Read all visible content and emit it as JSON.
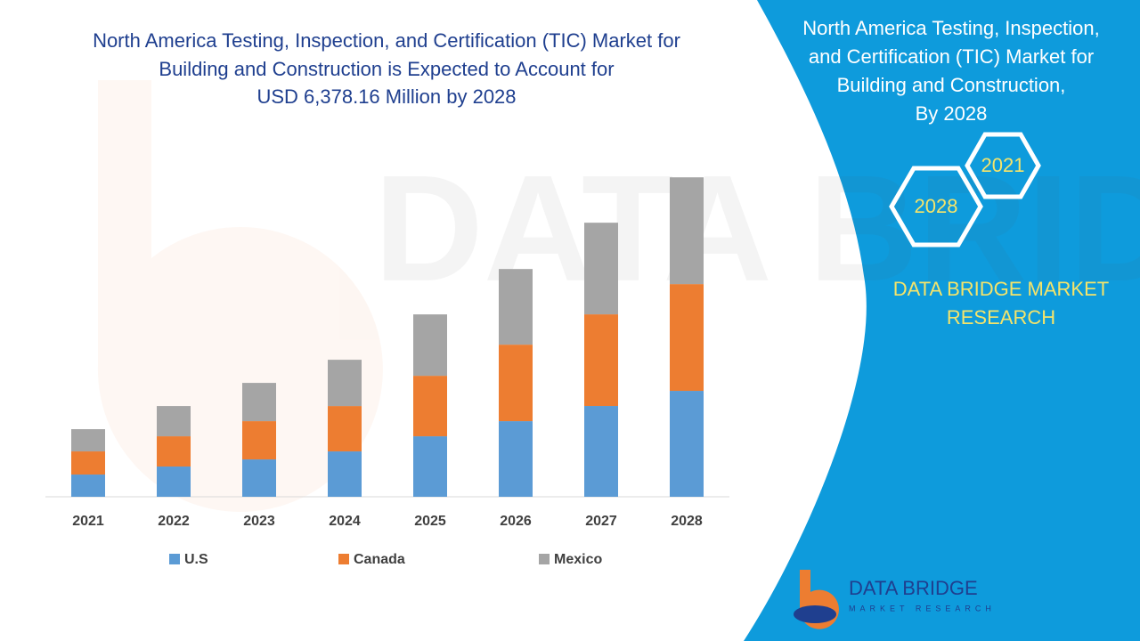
{
  "chart_data": {
    "type": "stacked_bar",
    "title": [
      "North America Testing, Inspection, and Certification (TIC) Market for",
      "Building and Construction is Expected to Account for",
      "USD 6,378.16 Million by 2028"
    ],
    "categories": [
      "2021",
      "2022",
      "2023",
      "2024",
      "2025",
      "2026",
      "2027",
      "2028"
    ],
    "series": [
      {
        "name": "U.S",
        "color": "#5b9bd5",
        "values": [
          444,
          604,
          746,
          906,
          1208,
          1510,
          1813,
          2115
        ]
      },
      {
        "name": "Canada",
        "color": "#ed7d31",
        "values": [
          462,
          604,
          764,
          906,
          1208,
          1528,
          1830,
          2132
        ]
      },
      {
        "name": "Mexico",
        "color": "#a5a5a5",
        "values": [
          444,
          604,
          764,
          924,
          1226,
          1510,
          1830,
          2132
        ]
      }
    ],
    "ylim": [
      0,
      6400
    ]
  },
  "panel": {
    "title": [
      "North America Testing, Inspection,",
      "and Certification (TIC) Market for",
      "Building and Construction,",
      "By 2028"
    ],
    "hex_start": "2021",
    "hex_end": "2028",
    "brand": [
      "DATA BRIDGE MARKET",
      "RESEARCH"
    ]
  },
  "logo": {
    "name": "DATA BRIDGE",
    "tagline": "MARKET RESEARCH"
  }
}
